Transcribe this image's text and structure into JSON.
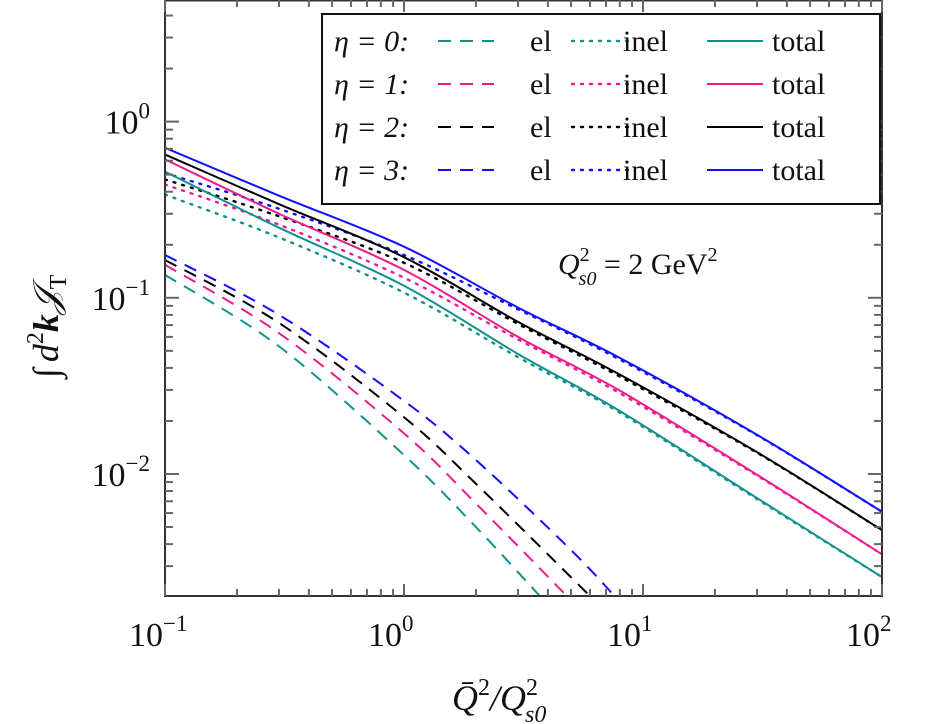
{
  "chart_data": {
    "type": "line",
    "title": "",
    "xlabel": {
      "main": "Q̄",
      "sup": "2",
      "slash": "/Q",
      "sup2": "2",
      "sub": "s0"
    },
    "ylabel": {
      "integral": "∫",
      "d": "d",
      "sup": "2",
      "k": "k",
      "J": "𝒥",
      "sub": "T"
    },
    "x_scale": "log",
    "y_scale": "log",
    "xlim": [
      0.1,
      100
    ],
    "ylim": [
      0.00203,
      4.9
    ],
    "grid": false,
    "legend_position": "top-right",
    "x_ticks": [
      {
        "value": 0.1,
        "base": "10",
        "exp": "−1"
      },
      {
        "value": 1,
        "base": "10",
        "exp": "0"
      },
      {
        "value": 10,
        "base": "10",
        "exp": "1"
      },
      {
        "value": 100,
        "base": "10",
        "exp": "2"
      }
    ],
    "y_ticks": [
      {
        "value": 1,
        "base": "10",
        "exp": "0"
      },
      {
        "value": 0.1,
        "base": "10",
        "exp": "−1"
      },
      {
        "value": 0.01,
        "base": "10",
        "exp": "−2"
      }
    ],
    "annotation": {
      "Q": "Q",
      "sup": "2",
      "sub": "s0",
      "rest": " = 2 GeV",
      "sup2": "2"
    },
    "legend_rows": [
      {
        "label": "η = 0:",
        "color": "#11918a",
        "el": "el",
        "inel": "inel",
        "total": "total"
      },
      {
        "label": "η = 1:",
        "color": "#ec1c8c",
        "el": "el",
        "inel": "inel",
        "total": "total"
      },
      {
        "label": "η = 2:",
        "color": "#000000",
        "el": "el",
        "inel": "inel",
        "total": "total"
      },
      {
        "label": "η = 3:",
        "color": "#1010ff",
        "el": "el",
        "inel": "inel",
        "total": "total"
      }
    ],
    "series": [
      {
        "eta": 0,
        "kind": "el",
        "style": "dashed",
        "color": "#11918a",
        "points": [
          [
            0.1,
            0.135
          ],
          [
            0.3,
            0.053
          ],
          [
            1,
            0.0128
          ],
          [
            2,
            0.005
          ],
          [
            3.7,
            0.00203
          ]
        ]
      },
      {
        "eta": 1,
        "kind": "el",
        "style": "dashed",
        "color": "#ec1c8c",
        "points": [
          [
            0.1,
            0.154
          ],
          [
            0.3,
            0.063
          ],
          [
            1,
            0.017
          ],
          [
            2,
            0.0068
          ],
          [
            4.8,
            0.00203
          ]
        ]
      },
      {
        "eta": 2,
        "kind": "el",
        "style": "dashed",
        "color": "#000000",
        "points": [
          [
            0.1,
            0.164
          ],
          [
            0.3,
            0.072
          ],
          [
            1,
            0.021
          ],
          [
            2,
            0.0088
          ],
          [
            6.0,
            0.00203
          ]
        ]
      },
      {
        "eta": 3,
        "kind": "el",
        "style": "dashed",
        "color": "#1010ff",
        "points": [
          [
            0.1,
            0.175
          ],
          [
            0.3,
            0.08
          ],
          [
            1,
            0.026
          ],
          [
            2,
            0.012
          ],
          [
            5,
            0.0037
          ],
          [
            7.6,
            0.00203
          ]
        ]
      },
      {
        "eta": 0,
        "kind": "inel",
        "style": "dotted",
        "color": "#11918a",
        "points": [
          [
            0.1,
            0.385
          ],
          [
            0.3,
            0.22
          ],
          [
            1,
            0.107
          ],
          [
            3,
            0.046
          ],
          [
            7.9,
            0.0225
          ],
          [
            30,
            0.0072
          ],
          [
            100,
            0.0026
          ]
        ]
      },
      {
        "eta": 1,
        "kind": "inel",
        "style": "dotted",
        "color": "#ec1c8c",
        "points": [
          [
            0.1,
            0.44
          ],
          [
            0.3,
            0.26
          ],
          [
            1,
            0.13
          ],
          [
            3,
            0.058
          ],
          [
            7.9,
            0.029
          ],
          [
            30,
            0.0098
          ],
          [
            100,
            0.0035
          ]
        ]
      },
      {
        "eta": 2,
        "kind": "inel",
        "style": "dotted",
        "color": "#000000",
        "points": [
          [
            0.1,
            0.47
          ],
          [
            0.3,
            0.29
          ],
          [
            1,
            0.158
          ],
          [
            3,
            0.071
          ],
          [
            7.9,
            0.036
          ],
          [
            30,
            0.0132
          ],
          [
            100,
            0.0048
          ]
        ]
      },
      {
        "eta": 3,
        "kind": "inel",
        "style": "dotted",
        "color": "#1010ff",
        "points": [
          [
            0.1,
            0.51
          ],
          [
            0.3,
            0.32
          ],
          [
            1,
            0.175
          ],
          [
            3,
            0.086
          ],
          [
            7.9,
            0.045
          ],
          [
            30,
            0.0166
          ],
          [
            100,
            0.0061
          ]
        ]
      },
      {
        "eta": 0,
        "kind": "total",
        "style": "solid",
        "color": "#11918a",
        "points": [
          [
            0.1,
            0.52
          ],
          [
            0.3,
            0.25
          ],
          [
            1,
            0.117
          ],
          [
            3,
            0.048
          ],
          [
            7.9,
            0.023
          ],
          [
            30,
            0.0073
          ],
          [
            100,
            0.0026
          ]
        ]
      },
      {
        "eta": 1,
        "kind": "total",
        "style": "solid",
        "color": "#ec1c8c",
        "points": [
          [
            0.1,
            0.61
          ],
          [
            0.3,
            0.3
          ],
          [
            1,
            0.144
          ],
          [
            3,
            0.06
          ],
          [
            7.9,
            0.03
          ],
          [
            30,
            0.0099
          ],
          [
            100,
            0.0035
          ]
        ]
      },
      {
        "eta": 2,
        "kind": "total",
        "style": "solid",
        "color": "#000000",
        "points": [
          [
            0.1,
            0.65
          ],
          [
            0.3,
            0.34
          ],
          [
            1,
            0.17
          ],
          [
            3,
            0.073
          ],
          [
            7.9,
            0.037
          ],
          [
            30,
            0.0133
          ],
          [
            100,
            0.0048
          ]
        ]
      },
      {
        "eta": 3,
        "kind": "total",
        "style": "solid",
        "color": "#1010ff",
        "points": [
          [
            0.1,
            0.71
          ],
          [
            0.3,
            0.38
          ],
          [
            1,
            0.195
          ],
          [
            3,
            0.088
          ],
          [
            7.9,
            0.046
          ],
          [
            30,
            0.0167
          ],
          [
            100,
            0.0061
          ]
        ]
      }
    ]
  }
}
